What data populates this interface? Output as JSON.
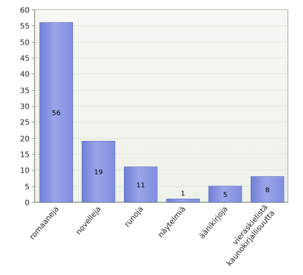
{
  "chart_data": {
    "type": "bar",
    "title": "",
    "xlabel": "",
    "ylabel": "",
    "ylim": [
      0,
      60
    ],
    "yticks": [
      0,
      5,
      10,
      15,
      20,
      25,
      30,
      35,
      40,
      45,
      50,
      55,
      60
    ],
    "grid": true,
    "categories": [
      [
        "romaaneja"
      ],
      [
        "novelleja"
      ],
      [
        "runoja"
      ],
      [
        "näytelmiä"
      ],
      [
        "äänikirjoja"
      ],
      [
        "vieraskielistä",
        "kaunokirjallisuutta"
      ]
    ],
    "values": [
      56,
      19,
      11,
      1,
      5,
      8
    ],
    "colors": {
      "bar_left": "#6f7fd6",
      "bar_right": "#9aa6e8",
      "bar_edge": "#5a68b8",
      "plot_bg_top": "#f6f7f2",
      "plot_bg_bottom": "#eef2ea",
      "grid": "#dfe6da",
      "axis": "#9aa08f"
    }
  }
}
